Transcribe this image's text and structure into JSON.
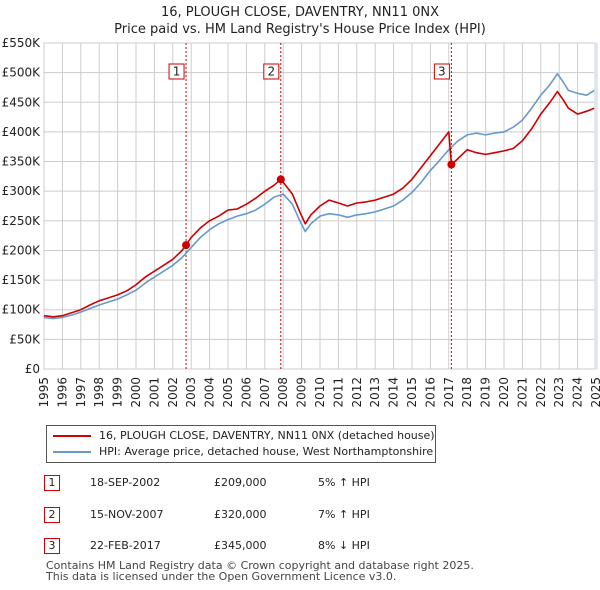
{
  "header": {
    "title_line1": "16, PLOUGH CLOSE, DAVENTRY, NN11 0NX",
    "title_line2": "Price paid vs. HM Land Registry's House Price Index (HPI)"
  },
  "colors": {
    "price_line": "#cc0000",
    "hpi_line": "#6699cc",
    "marker_line": "#cc0000",
    "shade": "#dce6f2",
    "grid": "#cccccc"
  },
  "chart_data": {
    "type": "line",
    "title": "16, PLOUGH CLOSE, DAVENTRY, NN11 0NX — Price paid vs. HM Land Registry's House Price Index (HPI)",
    "xlabel": "",
    "ylabel": "",
    "xlim": [
      1995,
      2025
    ],
    "ylim": [
      0,
      550000
    ],
    "y_ticks": [
      0,
      50000,
      100000,
      150000,
      200000,
      250000,
      300000,
      350000,
      400000,
      450000,
      500000,
      550000
    ],
    "y_tick_labels": [
      "£0",
      "£50K",
      "£100K",
      "£150K",
      "£200K",
      "£250K",
      "£300K",
      "£350K",
      "£400K",
      "£450K",
      "£500K",
      "£550K"
    ],
    "x_ticks": [
      1995,
      1996,
      1997,
      1998,
      1999,
      2000,
      2001,
      2002,
      2003,
      2004,
      2005,
      2006,
      2007,
      2008,
      2009,
      2010,
      2011,
      2012,
      2013,
      2014,
      2015,
      2016,
      2017,
      2018,
      2019,
      2020,
      2021,
      2022,
      2023,
      2024,
      2025
    ],
    "x_tick_labels": [
      "1995",
      "1996",
      "1997",
      "1998",
      "1999",
      "2000",
      "2001",
      "2002",
      "2003",
      "2004",
      "2005",
      "2006",
      "2007",
      "2008",
      "2009",
      "2010",
      "2011",
      "2012",
      "2013",
      "2014",
      "2015",
      "2016",
      "2017",
      "2018",
      "2019",
      "2020",
      "2021",
      "2022",
      "2023",
      "2024",
      "2025"
    ],
    "grid": true,
    "shaded_region": [
      2024.9,
      2025.1
    ],
    "series": [
      {
        "name": "16, PLOUGH CLOSE, DAVENTRY, NN11 0NX (detached house)",
        "color": "#cc0000",
        "x": [
          1995.0,
          1995.5,
          1996.0,
          1996.5,
          1997.0,
          1997.5,
          1998.0,
          1998.5,
          1999.0,
          1999.5,
          2000.0,
          2000.5,
          2001.0,
          2001.5,
          2002.0,
          2002.5,
          2002.72,
          2003.0,
          2003.5,
          2004.0,
          2004.5,
          2005.0,
          2005.5,
          2006.0,
          2006.5,
          2007.0,
          2007.5,
          2007.87,
          2008.0,
          2008.5,
          2008.9,
          2009.2,
          2009.5,
          2010.0,
          2010.5,
          2011.0,
          2011.5,
          2012.0,
          2012.5,
          2013.0,
          2013.5,
          2014.0,
          2014.5,
          2015.0,
          2015.5,
          2016.0,
          2016.5,
          2017.0,
          2017.14,
          2017.5,
          2018.0,
          2018.5,
          2019.0,
          2019.5,
          2020.0,
          2020.5,
          2021.0,
          2021.5,
          2022.0,
          2022.5,
          2022.9,
          2023.2,
          2023.5,
          2024.0,
          2024.5,
          2024.9
        ],
        "y": [
          90000,
          88000,
          90000,
          95000,
          100000,
          108000,
          115000,
          120000,
          125000,
          132000,
          142000,
          155000,
          165000,
          175000,
          185000,
          200000,
          209000,
          222000,
          238000,
          250000,
          258000,
          268000,
          270000,
          278000,
          288000,
          300000,
          310000,
          320000,
          315000,
          295000,
          265000,
          245000,
          260000,
          275000,
          285000,
          280000,
          275000,
          280000,
          282000,
          285000,
          290000,
          295000,
          305000,
          320000,
          340000,
          360000,
          380000,
          400000,
          345000,
          355000,
          370000,
          365000,
          362000,
          365000,
          368000,
          372000,
          385000,
          405000,
          430000,
          450000,
          468000,
          455000,
          440000,
          430000,
          435000,
          440000
        ]
      },
      {
        "name": "HPI: Average price, detached house, West Northamptonshire",
        "color": "#6699cc",
        "x": [
          1995.0,
          1995.5,
          1996.0,
          1996.5,
          1997.0,
          1997.5,
          1998.0,
          1998.5,
          1999.0,
          1999.5,
          2000.0,
          2000.5,
          2001.0,
          2001.5,
          2002.0,
          2002.5,
          2003.0,
          2003.5,
          2004.0,
          2004.5,
          2005.0,
          2005.5,
          2006.0,
          2006.5,
          2007.0,
          2007.5,
          2008.0,
          2008.5,
          2008.9,
          2009.2,
          2009.5,
          2010.0,
          2010.5,
          2011.0,
          2011.5,
          2012.0,
          2012.5,
          2013.0,
          2013.5,
          2014.0,
          2014.5,
          2015.0,
          2015.5,
          2016.0,
          2016.5,
          2017.0,
          2017.5,
          2018.0,
          2018.5,
          2019.0,
          2019.5,
          2020.0,
          2020.5,
          2021.0,
          2021.5,
          2022.0,
          2022.5,
          2022.9,
          2023.2,
          2023.5,
          2024.0,
          2024.5,
          2024.9
        ],
        "y": [
          87000,
          85000,
          87000,
          91000,
          96000,
          102000,
          108000,
          113000,
          118000,
          125000,
          133000,
          145000,
          155000,
          165000,
          175000,
          188000,
          205000,
          222000,
          235000,
          245000,
          252000,
          258000,
          262000,
          268000,
          278000,
          290000,
          295000,
          278000,
          250000,
          232000,
          245000,
          258000,
          262000,
          260000,
          256000,
          260000,
          262000,
          265000,
          270000,
          275000,
          285000,
          298000,
          315000,
          335000,
          352000,
          370000,
          385000,
          395000,
          398000,
          395000,
          398000,
          400000,
          408000,
          420000,
          440000,
          462000,
          480000,
          498000,
          485000,
          470000,
          465000,
          462000,
          470000
        ]
      }
    ],
    "transactions": [
      {
        "num": "1",
        "x": 2002.72,
        "y": 209000
      },
      {
        "num": "2",
        "x": 2007.87,
        "y": 320000
      },
      {
        "num": "3",
        "x": 2017.14,
        "y": 345000
      }
    ]
  },
  "legend": {
    "items": [
      {
        "label": "16, PLOUGH CLOSE, DAVENTRY, NN11 0NX (detached house)"
      },
      {
        "label": "HPI: Average price, detached house, West Northamptonshire"
      }
    ]
  },
  "transactions_table": [
    {
      "num": "1",
      "date": "18-SEP-2002",
      "price": "£209,000",
      "hpi": "5% ↑ HPI"
    },
    {
      "num": "2",
      "date": "15-NOV-2007",
      "price": "£320,000",
      "hpi": "7% ↑ HPI"
    },
    {
      "num": "3",
      "date": "22-FEB-2017",
      "price": "£345,000",
      "hpi": "8% ↓ HPI"
    }
  ],
  "footer": {
    "line1": "Contains HM Land Registry data © Crown copyright and database right 2025.",
    "line2": "This data is licensed under the Open Government Licence v3.0."
  }
}
